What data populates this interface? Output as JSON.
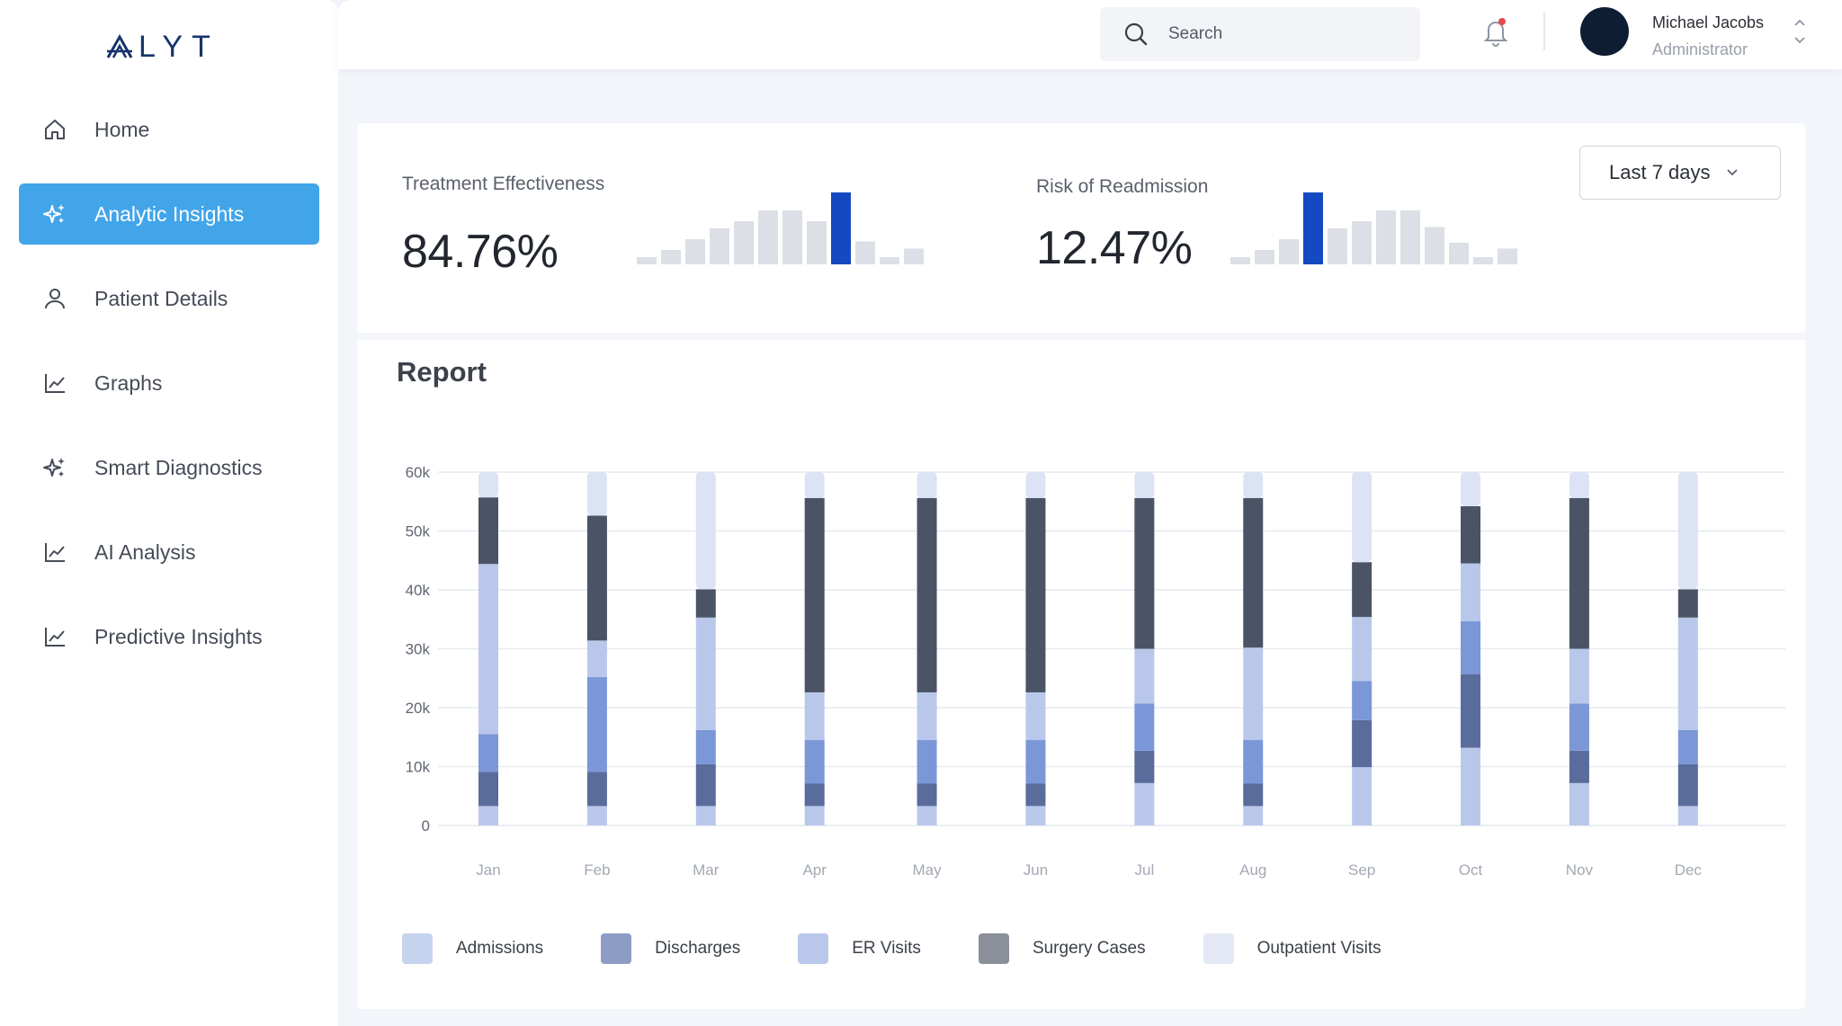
{
  "brand": {
    "logo_text": "LYT"
  },
  "sidebar": {
    "items": [
      {
        "label": "Home",
        "icon": "home-icon",
        "active": false
      },
      {
        "label": "Analytic Insights",
        "icon": "sparkles-icon",
        "active": true
      },
      {
        "label": "Patient Details",
        "icon": "user-icon",
        "active": false
      },
      {
        "label": "Graphs",
        "icon": "line-chart-icon",
        "active": false
      },
      {
        "label": "Smart Diagnostics",
        "icon": "sparkles-icon",
        "active": false
      },
      {
        "label": "AI Analysis",
        "icon": "line-chart-icon",
        "active": false
      },
      {
        "label": "Predictive Insights",
        "icon": "line-chart-icon",
        "active": false
      }
    ]
  },
  "header": {
    "search": {
      "placeholder": "Search",
      "value": ""
    },
    "user": {
      "name": "Michael Jacobs",
      "role": "Administrator"
    },
    "notification_dot_color": "#e5484d"
  },
  "kpis": [
    {
      "title": "Treatment Effectiveness",
      "value": "84.76%",
      "bars": [
        1,
        2,
        3.5,
        5,
        6,
        7.5,
        7.5,
        6,
        10,
        3.2,
        1,
        2.2
      ],
      "highlight_index": 8
    },
    {
      "title": "Risk of Readmission",
      "value": "12.47%",
      "bars": [
        1,
        2,
        3.5,
        10,
        5,
        6,
        7.5,
        7.5,
        5.2,
        3,
        1,
        2.2
      ],
      "highlight_index": 3
    }
  ],
  "period_filter": {
    "selected": "Last 7 days"
  },
  "report": {
    "title": "Report"
  },
  "colors": {
    "accent": "#42a5ea",
    "highlight_bar": "#1449c2",
    "muted_bar": "#dcdfe6",
    "admissions": "#c6d3ee",
    "discharges": "#8c9cc4",
    "er_visits": "#b9c8ea",
    "surgery_cases": "#8a8f99",
    "outpatient_visits": "#e4e9f5"
  },
  "chart_data": {
    "type": "bar",
    "stacked": true,
    "categories": [
      "Jan",
      "Feb",
      "Mar",
      "Apr",
      "May",
      "Jun",
      "Jul",
      "Aug",
      "Sep",
      "Oct",
      "Nov",
      "Dec"
    ],
    "ylim": [
      0,
      60000
    ],
    "yticks": [
      0,
      10000,
      20000,
      30000,
      40000,
      50000,
      60000
    ],
    "ytick_labels": [
      "0",
      "10k",
      "20k",
      "30k",
      "40k",
      "50k",
      "60k"
    ],
    "grid": true,
    "legend": "bottom-left",
    "segments": [
      [
        [
          0,
          3300,
          "#b9c8ea"
        ],
        [
          3300,
          9100,
          "#5a6c9c"
        ],
        [
          9100,
          15500,
          "#7b97d8"
        ],
        [
          15500,
          44400,
          "#b9c8ea"
        ],
        [
          44400,
          55700,
          "#4b5466"
        ],
        [
          55700,
          60000,
          "#dbe3f4"
        ]
      ],
      [
        [
          0,
          3300,
          "#b9c8ea"
        ],
        [
          3300,
          9100,
          "#5a6c9c"
        ],
        [
          9100,
          25200,
          "#7b97d8"
        ],
        [
          25200,
          31400,
          "#b9c8ea"
        ],
        [
          31400,
          52600,
          "#4b5466"
        ],
        [
          52600,
          60000,
          "#dbe3f4"
        ]
      ],
      [
        [
          0,
          3300,
          "#b9c8ea"
        ],
        [
          3300,
          10400,
          "#5a6c9c"
        ],
        [
          10400,
          16200,
          "#7b97d8"
        ],
        [
          16200,
          35300,
          "#b9c8ea"
        ],
        [
          35300,
          40100,
          "#4b5466"
        ],
        [
          40100,
          60000,
          "#dbe3f4"
        ]
      ],
      [
        [
          0,
          3300,
          "#b9c8ea"
        ],
        [
          3300,
          7100,
          "#5a6c9c"
        ],
        [
          7100,
          14500,
          "#7b97d8"
        ],
        [
          14500,
          22600,
          "#b9c8ea"
        ],
        [
          22600,
          55600,
          "#4b5466"
        ],
        [
          55600,
          60000,
          "#dbe3f4"
        ]
      ],
      [
        [
          0,
          3300,
          "#b9c8ea"
        ],
        [
          3300,
          7100,
          "#5a6c9c"
        ],
        [
          7100,
          14500,
          "#7b97d8"
        ],
        [
          14500,
          22600,
          "#b9c8ea"
        ],
        [
          22600,
          55600,
          "#4b5466"
        ],
        [
          55600,
          60000,
          "#dbe3f4"
        ]
      ],
      [
        [
          0,
          3300,
          "#b9c8ea"
        ],
        [
          3300,
          7100,
          "#5a6c9c"
        ],
        [
          7100,
          14500,
          "#7b97d8"
        ],
        [
          14500,
          22600,
          "#b9c8ea"
        ],
        [
          22600,
          55600,
          "#4b5466"
        ],
        [
          55600,
          60000,
          "#dbe3f4"
        ]
      ],
      [
        [
          0,
          7200,
          "#b9c8ea"
        ],
        [
          7200,
          12700,
          "#5a6c9c"
        ],
        [
          12700,
          20700,
          "#7b97d8"
        ],
        [
          20700,
          30000,
          "#b9c8ea"
        ],
        [
          30000,
          55600,
          "#4b5466"
        ],
        [
          55600,
          60000,
          "#dbe3f4"
        ]
      ],
      [
        [
          0,
          3300,
          "#b9c8ea"
        ],
        [
          3300,
          7100,
          "#5a6c9c"
        ],
        [
          7100,
          14500,
          "#7b97d8"
        ],
        [
          14500,
          30200,
          "#b9c8ea"
        ],
        [
          30200,
          55600,
          "#4b5466"
        ],
        [
          55600,
          60000,
          "#dbe3f4"
        ]
      ],
      [
        [
          0,
          9900,
          "#b9c8ea"
        ],
        [
          9900,
          17900,
          "#5a6c9c"
        ],
        [
          17900,
          24500,
          "#7b97d8"
        ],
        [
          24500,
          35400,
          "#b9c8ea"
        ],
        [
          35400,
          44700,
          "#4b5466"
        ],
        [
          44700,
          60000,
          "#dbe3f4"
        ]
      ],
      [
        [
          0,
          13200,
          "#b9c8ea"
        ],
        [
          13200,
          25700,
          "#5a6c9c"
        ],
        [
          25700,
          34700,
          "#7b97d8"
        ],
        [
          34700,
          44500,
          "#b9c8ea"
        ],
        [
          44500,
          54200,
          "#4b5466"
        ],
        [
          54200,
          60000,
          "#dbe3f4"
        ]
      ],
      [
        [
          0,
          7200,
          "#b9c8ea"
        ],
        [
          7200,
          12700,
          "#5a6c9c"
        ],
        [
          12700,
          20700,
          "#7b97d8"
        ],
        [
          20700,
          30000,
          "#b9c8ea"
        ],
        [
          30000,
          55600,
          "#4b5466"
        ],
        [
          55600,
          60000,
          "#dbe3f4"
        ]
      ],
      [
        [
          0,
          3300,
          "#b9c8ea"
        ],
        [
          3300,
          10400,
          "#5a6c9c"
        ],
        [
          10400,
          16200,
          "#7b97d8"
        ],
        [
          16200,
          35300,
          "#b9c8ea"
        ],
        [
          35300,
          40100,
          "#4b5466"
        ],
        [
          40100,
          60000,
          "#dbe3f4"
        ]
      ]
    ],
    "legend_items": [
      {
        "name": "Admissions",
        "color": "#c6d3ee"
      },
      {
        "name": "Discharges",
        "color": "#8c9cc4"
      },
      {
        "name": "ER Visits",
        "color": "#b9c8ea"
      },
      {
        "name": "Surgery Cases",
        "color": "#8a8f99"
      },
      {
        "name": "Outpatient Visits",
        "color": "#e4e9f5"
      }
    ]
  }
}
